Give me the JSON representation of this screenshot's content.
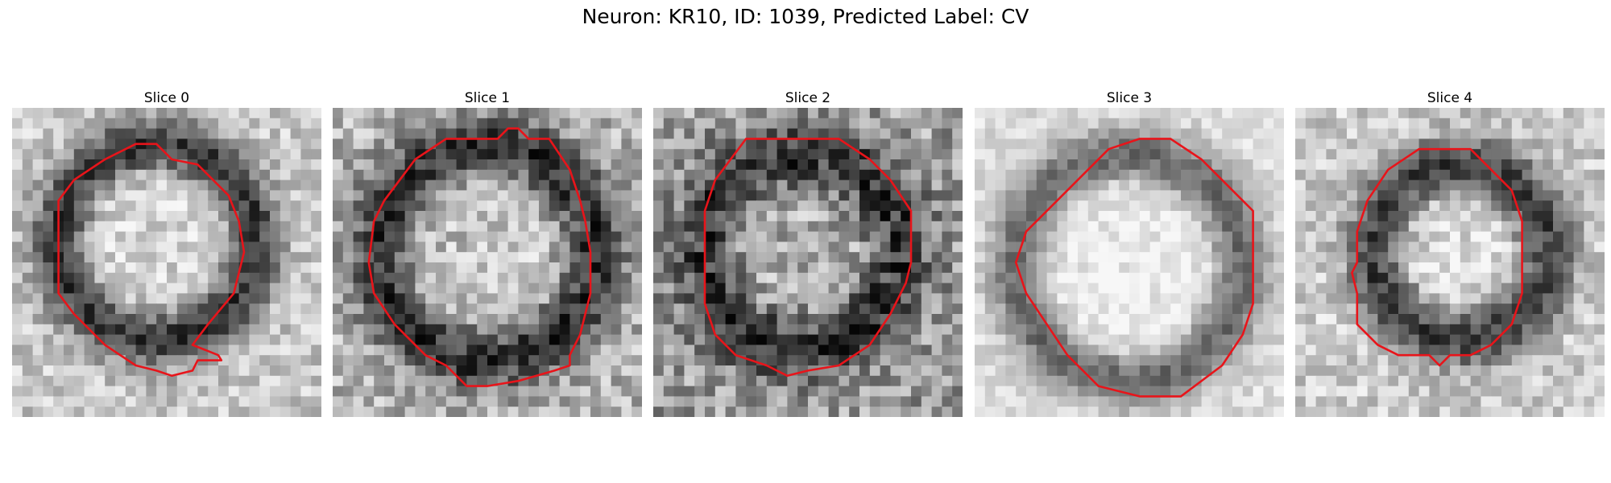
{
  "figure": {
    "title": "Neuron: KR10, ID: 1039, Predicted Label: CV",
    "contour_color": "#e8141a"
  },
  "panels": [
    {
      "title": "Slice 0"
    },
    {
      "title": "Slice 1"
    },
    {
      "title": "Slice 2"
    },
    {
      "title": "Slice 3"
    },
    {
      "title": "Slice 4"
    }
  ]
}
